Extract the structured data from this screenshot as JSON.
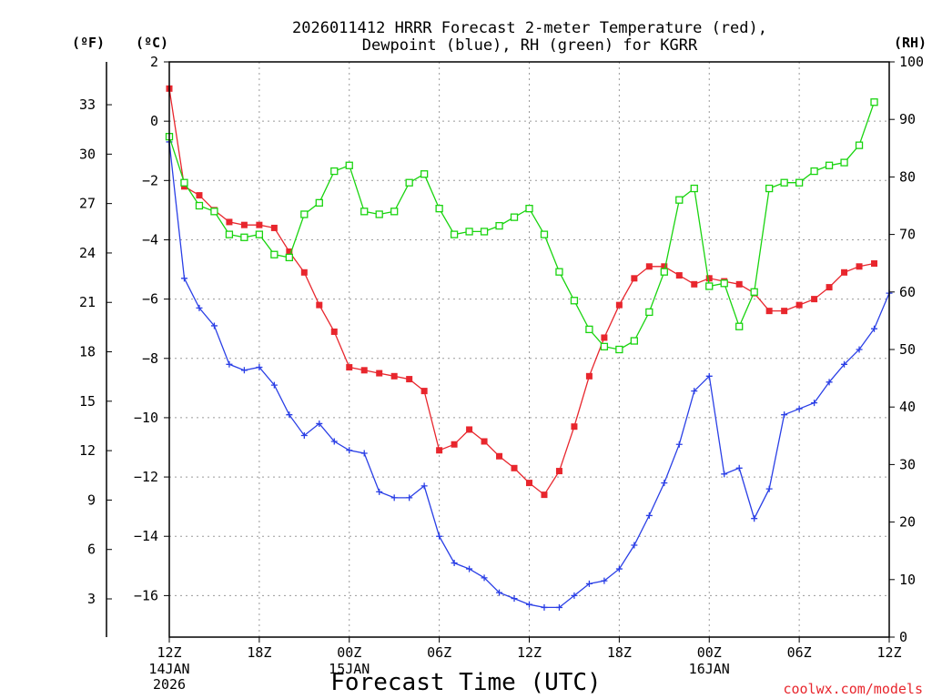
{
  "chart_data": {
    "type": "line",
    "title_line1": "2026011412 HRRR Forecast 2-meter Temperature (red),",
    "title_line2": "Dewpoint (blue), RH (green) for KGRR",
    "xlabel": "Forecast Time (UTC)",
    "credit": "coolwx.com/models",
    "y_left_unit_f": "(ºF)",
    "y_left_unit_c": "(ºC)",
    "y_right_unit": "(RH)",
    "ylim_c": [
      -17.4,
      2
    ],
    "ylim_rh": [
      0,
      100
    ],
    "x_range_hours": [
      0,
      48
    ],
    "c_ticks": [
      2,
      0,
      -2,
      -4,
      -6,
      -8,
      -10,
      -12,
      -14,
      -16
    ],
    "c_tick_labels": [
      "2",
      "0",
      "−2",
      "−4",
      "−6",
      "−8",
      "−10",
      "−12",
      "−14",
      "−16"
    ],
    "f_ticks": [
      33,
      30,
      27,
      24,
      21,
      18,
      15,
      12,
      9,
      6,
      3
    ],
    "f_tick_labels": [
      "33",
      "30",
      "27",
      "24",
      "21",
      "18",
      "15",
      "12",
      "9",
      "6",
      "3"
    ],
    "rh_ticks": [
      100,
      90,
      80,
      70,
      60,
      50,
      40,
      30,
      20,
      10,
      0
    ],
    "rh_tick_labels": [
      "100",
      "90",
      "80",
      "70",
      "60",
      "50",
      "40",
      "30",
      "20",
      "10",
      "0"
    ],
    "x_ticks": [
      {
        "hour": 0,
        "label": "12Z",
        "sub1": "14JAN",
        "sub2": "2026"
      },
      {
        "hour": 6,
        "label": "18Z",
        "sub1": "",
        "sub2": ""
      },
      {
        "hour": 12,
        "label": "00Z",
        "sub1": "15JAN",
        "sub2": ""
      },
      {
        "hour": 18,
        "label": "06Z",
        "sub1": "",
        "sub2": ""
      },
      {
        "hour": 24,
        "label": "12Z",
        "sub1": "",
        "sub2": ""
      },
      {
        "hour": 30,
        "label": "18Z",
        "sub1": "",
        "sub2": ""
      },
      {
        "hour": 36,
        "label": "00Z",
        "sub1": "16JAN",
        "sub2": ""
      },
      {
        "hour": 42,
        "label": "06Z",
        "sub1": "",
        "sub2": ""
      },
      {
        "hour": 48,
        "label": "12Z",
        "sub1": "",
        "sub2": ""
      }
    ],
    "hours": [
      0,
      1,
      2,
      3,
      4,
      5,
      6,
      7,
      8,
      9,
      10,
      11,
      12,
      13,
      14,
      15,
      16,
      17,
      18,
      19,
      20,
      21,
      22,
      23,
      24,
      25,
      26,
      27,
      28,
      29,
      30,
      31,
      32,
      33,
      34,
      35,
      36,
      37,
      38,
      39,
      40,
      41,
      42,
      43,
      44,
      45,
      46,
      47,
      48
    ],
    "series": [
      {
        "name": "2-meter Temperature",
        "unit": "C",
        "color": "#e8262d",
        "marker": "filled-square",
        "values": [
          1.1,
          -2.2,
          -2.5,
          -3.0,
          -3.4,
          -3.5,
          -3.5,
          -3.6,
          -4.4,
          -5.1,
          -6.2,
          -7.1,
          -8.3,
          -8.4,
          -8.5,
          -8.6,
          -8.7,
          -9.1,
          -11.1,
          -10.9,
          -10.4,
          -10.8,
          -11.3,
          -11.7,
          -12.2,
          -12.6,
          -11.8,
          -10.3,
          -8.6,
          -7.3,
          -6.2,
          -5.3,
          -4.9,
          -4.9,
          -5.2,
          -5.5,
          -5.3,
          -5.4,
          -5.5,
          -5.8,
          -6.4,
          -6.4,
          -6.2,
          -6.0,
          -5.6,
          -5.1,
          -4.9,
          -4.8,
          null
        ]
      },
      {
        "name": "Dewpoint",
        "unit": "C",
        "color": "#2a3fe6",
        "marker": "plus",
        "values": [
          -0.7,
          -5.3,
          -6.3,
          -6.9,
          -8.2,
          -8.4,
          -8.3,
          -8.9,
          -9.9,
          -10.6,
          -10.2,
          -10.8,
          -11.1,
          -11.2,
          -12.5,
          -12.7,
          -12.7,
          -12.3,
          -14.0,
          -14.9,
          -15.1,
          -15.4,
          -15.9,
          -16.1,
          -16.3,
          -16.4,
          -16.4,
          -16.0,
          -15.6,
          -15.5,
          -15.1,
          -14.3,
          -13.3,
          -12.2,
          -10.9,
          -9.1,
          -8.6,
          -11.9,
          -11.7,
          -13.4,
          -12.4,
          -9.9,
          -9.7,
          -9.5,
          -8.8,
          -8.2,
          -7.7,
          -7.0,
          -5.8
        ]
      },
      {
        "name": "RH",
        "unit": "%",
        "color": "#19d40f",
        "marker": "open-square",
        "values": [
          87,
          79,
          75,
          74,
          70,
          69.5,
          70,
          66.5,
          66,
          73.5,
          75.5,
          81,
          82,
          74,
          73.5,
          74,
          79,
          80.5,
          74.5,
          70,
          70.5,
          70.5,
          71.5,
          73,
          74.5,
          70,
          63.5,
          58.5,
          53.5,
          50.5,
          50,
          51.5,
          56.5,
          63.5,
          76,
          78,
          61,
          61.5,
          54,
          60,
          78,
          79,
          79,
          81,
          82,
          82.5,
          85.5,
          93,
          null
        ]
      }
    ]
  }
}
